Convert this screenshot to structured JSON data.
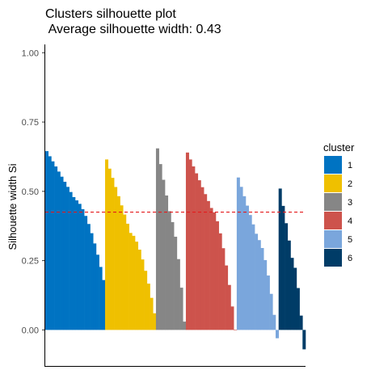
{
  "chart_data": {
    "type": "bar",
    "title_line1": "Clusters silhouette plot",
    "title_line2": " Average silhouette width: 0.43",
    "ylabel": "Silhouette width Si",
    "xlabel": "",
    "ylim": [
      -0.13,
      1.03
    ],
    "yticks": [
      "0.00",
      "0.25",
      "0.50",
      "0.75",
      "1.00"
    ],
    "ytick_values": [
      0.0,
      0.25,
      0.5,
      0.75,
      1.0
    ],
    "average_silhouette": 0.425,
    "average_line_color": "#e41a1c",
    "grid": false,
    "legend_position": "right",
    "legend_title": "cluster",
    "clusters": [
      {
        "name": "1",
        "color": "#0073C2",
        "n": 20,
        "max": 0.645,
        "mid": 0.47,
        "min": 0.18
      },
      {
        "name": "2",
        "color": "#EFC000",
        "n": 17,
        "max": 0.615,
        "mid": 0.35,
        "min": 0.06
      },
      {
        "name": "3",
        "color": "#868686",
        "n": 10,
        "max": 0.655,
        "mid": 0.4,
        "min": 0.03
      },
      {
        "name": "4",
        "color": "#CD534C",
        "n": 17,
        "max": 0.64,
        "mid": 0.44,
        "min": 0.0
      },
      {
        "name": "5",
        "color": "#7AA6DC",
        "n": 14,
        "max": 0.55,
        "mid": 0.33,
        "min": -0.03
      },
      {
        "name": "6",
        "color": "#003C67",
        "n": 9,
        "max": 0.51,
        "mid": 0.26,
        "min": -0.07
      }
    ]
  }
}
